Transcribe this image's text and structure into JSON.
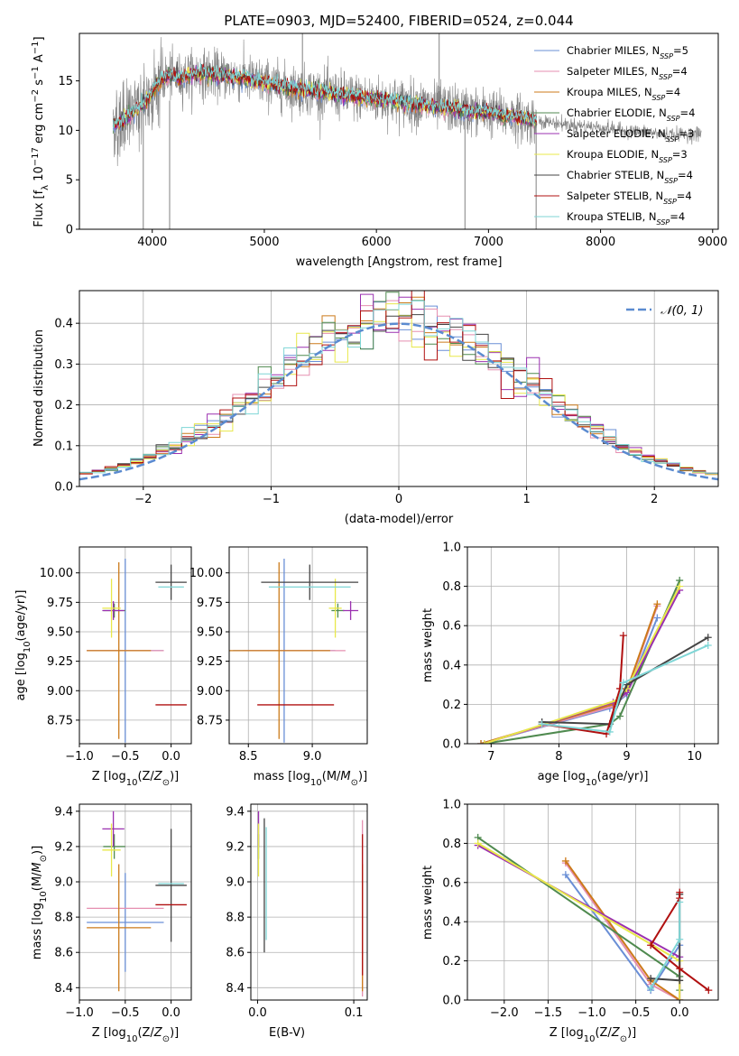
{
  "page_title": "PLATE=0903, MJD=52400, FIBERID=0524, z=0.044",
  "colors": {
    "Chabrier MILES": "#6a8fd6",
    "Salpeter MILES": "#e58fb0",
    "Kroupa MILES": "#cc7a1a",
    "Chabrier ELODIE": "#4f8a4f",
    "Salpeter ELODIE": "#9b30b0",
    "Kroupa ELODIE": "#e8e84a",
    "Chabrier STELIB": "#444444",
    "Salpeter STELIB": "#b01010",
    "Kroupa STELIB": "#7fd6d6",
    "data": "#808080",
    "gauss": "#5b8bd0"
  },
  "chart_data": [
    {
      "id": "spectrum",
      "type": "line",
      "title": "PLATE=0903, MJD=52400, FIBERID=0524, z=0.044",
      "xlabel": "wavelength [Angstrom, rest frame]",
      "ylabel": "Flux [f_λ 10^-17 erg cm^-2 s^-1 A^-1]",
      "xlim": [
        3350,
        9050
      ],
      "ylim": [
        0,
        19.8
      ],
      "xticks": [
        "4000",
        "5000",
        "6000",
        "7000",
        "8000",
        "9000"
      ],
      "yticks": [
        "0",
        "5",
        "10",
        "15"
      ],
      "grid": false,
      "legend_position": "top-right",
      "legend": [
        {
          "name": "Chabrier MILES",
          "n": "5"
        },
        {
          "name": "Salpeter MILES",
          "n": "4"
        },
        {
          "name": "Kroupa MILES",
          "n": "4"
        },
        {
          "name": "Chabrier ELODIE",
          "n": "4"
        },
        {
          "name": "Salpeter ELODIE",
          "n": "3"
        },
        {
          "name": "Kroupa ELODIE",
          "n": "3"
        },
        {
          "name": "Chabrier STELIB",
          "n": "4"
        },
        {
          "name": "Salpeter STELIB",
          "n": "4"
        },
        {
          "name": "Kroupa STELIB",
          "n": "4"
        }
      ],
      "continuum": {
        "x": [
          3650,
          3750,
          3850,
          3950,
          4050,
          4150,
          4250,
          4400,
          4600,
          4800,
          5000,
          5200,
          5400,
          5600,
          5800,
          6000,
          6200,
          6400,
          6600,
          6800,
          7000,
          7200,
          7400,
          7500
        ],
        "y": [
          10.5,
          11.0,
          12.0,
          13.0,
          14.8,
          15.5,
          15.3,
          15.8,
          15.6,
          15.3,
          14.8,
          14.3,
          14.0,
          13.7,
          13.4,
          13.1,
          12.9,
          12.6,
          12.3,
          12.0,
          11.8,
          11.4,
          11.0,
          10.8
        ]
      },
      "red_tail": {
        "x": [
          7450,
          7600,
          7800,
          8000,
          8200,
          8400,
          8600,
          8800,
          8900
        ],
        "y": [
          11.0,
          10.7,
          10.5,
          10.3,
          10.0,
          9.8,
          9.6,
          9.6,
          9.7
        ]
      },
      "spikes": [
        {
          "x": 3920,
          "y0": 12.0,
          "y1": 0
        },
        {
          "x": 4155,
          "y0": 13.0,
          "y1": 0
        },
        {
          "x": 5340,
          "y0": 14.0,
          "y1": 19.8
        },
        {
          "x": 6560,
          "y0": 12.6,
          "y1": 19.8
        },
        {
          "x": 6790,
          "y0": 12.0,
          "y1": 0
        },
        {
          "x": 7425,
          "y0": 10.8,
          "y1": 0
        }
      ]
    },
    {
      "id": "residuals",
      "type": "line",
      "xlabel": "(data-model)/error",
      "ylabel": "Normed distribution",
      "xlim": [
        -2.5,
        2.5
      ],
      "ylim": [
        0,
        0.48
      ],
      "xticks": [
        -2,
        -1,
        0,
        1,
        2
      ],
      "yticks": [
        0.0,
        0.1,
        0.2,
        0.3,
        0.4
      ],
      "grid": true,
      "legend_position": "top-right",
      "legend_label": "𝒩(0, 1)",
      "histogram_bin_width": 0.1,
      "curve": "standard normal pdf"
    },
    {
      "id": "age-vs-Z",
      "type": "scatter",
      "xlabel": "Z [log10(Z/Z⊙)]",
      "ylabel": "age  [log10(age/yr)]",
      "xlim": [
        -1.0,
        0.22
      ],
      "ylim": [
        8.55,
        10.22
      ],
      "xticks": [
        -1.0,
        -0.5,
        0.0
      ],
      "yticks": [
        8.75,
        9.0,
        9.25,
        9.5,
        9.75,
        10.0
      ],
      "grid": true,
      "points": [
        {
          "s": "Chabrier MILES",
          "x": -0.5,
          "y": 9.34,
          "xerr": 0.42,
          "yerr": 0.78
        },
        {
          "s": "Salpeter MILES",
          "x": -0.5,
          "y": 9.34,
          "xerr": 0.42,
          "yerr": 0.0
        },
        {
          "s": "Kroupa MILES",
          "x": -0.57,
          "y": 9.34,
          "xerr": 0.35,
          "yerr": 0.75
        },
        {
          "s": "Chabrier ELODIE",
          "x": -0.62,
          "y": 9.68,
          "xerr": 0.12,
          "yerr": 0.06
        },
        {
          "s": "Salpeter ELODIE",
          "x": -0.63,
          "y": 9.68,
          "xerr": 0.12,
          "yerr": 0.08
        },
        {
          "s": "Kroupa ELODIE",
          "x": -0.65,
          "y": 9.7,
          "xerr": 0.1,
          "yerr": 0.25
        },
        {
          "s": "Chabrier STELIB",
          "x": 0.0,
          "y": 9.92,
          "xerr": 0.17,
          "yerr": 0.15
        },
        {
          "s": "Salpeter STELIB",
          "x": 0.0,
          "y": 8.88,
          "xerr": 0.17,
          "yerr": 0.0
        },
        {
          "s": "Kroupa STELIB",
          "x": 0.0,
          "y": 9.88,
          "xerr": 0.14,
          "yerr": 0.0
        }
      ]
    },
    {
      "id": "age-vs-mass",
      "type": "scatter",
      "xlabel": "mass [log10(M/M⊙)]",
      "ylabel": "",
      "xlim": [
        8.35,
        9.43
      ],
      "ylim": [
        8.55,
        10.22
      ],
      "xticks": [
        8.5,
        9.0
      ],
      "yticks": [
        8.75,
        9.0,
        9.25,
        9.5,
        9.75,
        10.0
      ],
      "grid": true,
      "points": [
        {
          "s": "Chabrier MILES",
          "x": 8.78,
          "y": 9.34,
          "xerr": 0.4,
          "yerr": 0.78
        },
        {
          "s": "Salpeter MILES",
          "x": 8.86,
          "y": 9.34,
          "xerr": 0.4,
          "yerr": 0.0
        },
        {
          "s": "Kroupa MILES",
          "x": 8.74,
          "y": 9.34,
          "xerr": 0.4,
          "yerr": 0.75
        },
        {
          "s": "Chabrier ELODIE",
          "x": 9.2,
          "y": 9.68,
          "xerr": 0.05,
          "yerr": 0.06
        },
        {
          "s": "Salpeter ELODIE",
          "x": 9.3,
          "y": 9.68,
          "xerr": 0.06,
          "yerr": 0.08
        },
        {
          "s": "Kroupa ELODIE",
          "x": 9.18,
          "y": 9.7,
          "xerr": 0.05,
          "yerr": 0.25
        },
        {
          "s": "Chabrier STELIB",
          "x": 8.98,
          "y": 9.92,
          "xerr": 0.38,
          "yerr": 0.15
        },
        {
          "s": "Salpeter STELIB",
          "x": 8.87,
          "y": 8.88,
          "xerr": 0.3,
          "yerr": 0.0
        },
        {
          "s": "Kroupa STELIB",
          "x": 8.98,
          "y": 9.88,
          "xerr": 0.32,
          "yerr": 0.0
        }
      ]
    },
    {
      "id": "mass-weight-vs-age",
      "type": "line",
      "xlabel": "age  [log10(age/yr)]",
      "ylabel": "mass weight",
      "xlim": [
        6.65,
        10.35
      ],
      "ylim": [
        0.0,
        1.0
      ],
      "xticks": [
        7,
        8,
        9,
        10
      ],
      "yticks": [
        0.0,
        0.2,
        0.4,
        0.6,
        0.8,
        1.0
      ],
      "grid": true,
      "series": [
        {
          "s": "Chabrier MILES",
          "x": [
            6.85,
            8.75,
            9.0,
            9.45
          ],
          "y": [
            0.0,
            0.18,
            0.25,
            0.64
          ]
        },
        {
          "s": "Salpeter MILES",
          "x": [
            6.85,
            8.8,
            9.0,
            9.45
          ],
          "y": [
            0.0,
            0.19,
            0.26,
            0.7
          ]
        },
        {
          "s": "Kroupa MILES",
          "x": [
            6.85,
            8.8,
            9.0,
            9.45
          ],
          "y": [
            0.0,
            0.2,
            0.27,
            0.71
          ]
        },
        {
          "s": "Chabrier ELODIE",
          "x": [
            6.9,
            8.75,
            8.9,
            9.78
          ],
          "y": [
            0.0,
            0.1,
            0.14,
            0.83
          ]
        },
        {
          "s": "Salpeter ELODIE",
          "x": [
            6.9,
            8.8,
            9.0,
            9.78
          ],
          "y": [
            0.0,
            0.21,
            0.26,
            0.78
          ]
        },
        {
          "s": "Kroupa ELODIE",
          "x": [
            6.9,
            8.85,
            9.0,
            9.78
          ],
          "y": [
            0.0,
            0.22,
            0.28,
            0.8
          ]
        },
        {
          "s": "Chabrier STELIB",
          "x": [
            7.75,
            8.75,
            9.0,
            10.2
          ],
          "y": [
            0.11,
            0.1,
            0.3,
            0.54
          ]
        },
        {
          "s": "Salpeter STELIB",
          "x": [
            7.75,
            8.7,
            8.9,
            8.95
          ],
          "y": [
            0.1,
            0.05,
            0.28,
            0.55
          ]
        },
        {
          "s": "Kroupa STELIB",
          "x": [
            7.75,
            8.75,
            8.95,
            10.2
          ],
          "y": [
            0.1,
            0.06,
            0.31,
            0.5
          ]
        }
      ]
    },
    {
      "id": "mass-vs-Z",
      "type": "scatter",
      "xlabel": "Z [log10(Z/Z⊙)]",
      "ylabel": "mass [log10(M/M⊙)]",
      "xlim": [
        -1.0,
        0.22
      ],
      "ylim": [
        8.33,
        9.44
      ],
      "xticks": [
        -1.0,
        -0.5,
        0.0
      ],
      "yticks": [
        8.4,
        8.6,
        8.8,
        9.0,
        9.2,
        9.4
      ],
      "grid": true,
      "points": [
        {
          "s": "Chabrier MILES",
          "x": -0.5,
          "y": 8.77,
          "xerr": 0.42,
          "yerr": 0.28
        },
        {
          "s": "Salpeter MILES",
          "x": -0.5,
          "y": 8.85,
          "xerr": 0.42,
          "yerr": 0.0
        },
        {
          "s": "Kroupa MILES",
          "x": -0.57,
          "y": 8.74,
          "xerr": 0.35,
          "yerr": 0.36
        },
        {
          "s": "Chabrier ELODIE",
          "x": -0.62,
          "y": 9.2,
          "xerr": 0.12,
          "yerr": 0.07
        },
        {
          "s": "Salpeter ELODIE",
          "x": -0.63,
          "y": 9.3,
          "xerr": 0.12,
          "yerr": 0.1
        },
        {
          "s": "Kroupa ELODIE",
          "x": -0.65,
          "y": 9.18,
          "xerr": 0.1,
          "yerr": 0.15
        },
        {
          "s": "Chabrier STELIB",
          "x": 0.0,
          "y": 8.98,
          "xerr": 0.17,
          "yerr": 0.32
        },
        {
          "s": "Salpeter STELIB",
          "x": 0.0,
          "y": 8.87,
          "xerr": 0.17,
          "yerr": 0.0
        },
        {
          "s": "Kroupa STELIB",
          "x": 0.0,
          "y": 8.99,
          "xerr": 0.14,
          "yerr": 0.0
        }
      ]
    },
    {
      "id": "mass-vs-EBV",
      "type": "scatter",
      "xlabel": "E(B-V)",
      "ylabel": "",
      "xlim": [
        -0.007,
        0.114
      ],
      "ylim": [
        8.33,
        9.44
      ],
      "xticks": [
        0.0,
        0.1
      ],
      "yticks": [
        8.4,
        8.6,
        8.8,
        9.0,
        9.2,
        9.4
      ],
      "grid": true,
      "points": [
        {
          "s": "Chabrier MILES",
          "x": 0.109,
          "y": 8.77,
          "yerr": 0.28
        },
        {
          "s": "Salpeter MILES",
          "x": 0.109,
          "y": 8.85,
          "yerr": 0.5
        },
        {
          "s": "Kroupa MILES",
          "x": 0.109,
          "y": 8.74,
          "yerr": 0.36
        },
        {
          "s": "Chabrier ELODIE",
          "x": 0.001,
          "y": 9.2,
          "yerr": 0.07
        },
        {
          "s": "Salpeter ELODIE",
          "x": 0.001,
          "y": 9.3,
          "yerr": 0.1
        },
        {
          "s": "Kroupa ELODIE",
          "x": 0.001,
          "y": 9.18,
          "yerr": 0.15
        },
        {
          "s": "Chabrier STELIB",
          "x": 0.007,
          "y": 8.98,
          "yerr": 0.38
        },
        {
          "s": "Salpeter STELIB",
          "x": 0.109,
          "y": 8.87,
          "yerr": 0.4
        },
        {
          "s": "Kroupa STELIB",
          "x": 0.009,
          "y": 8.99,
          "yerr": 0.32
        }
      ]
    },
    {
      "id": "mass-weight-vs-Z",
      "type": "line",
      "xlabel": "Z [log10(Z/Z⊙)]",
      "ylabel": "mass weight",
      "xlim": [
        -2.42,
        0.44
      ],
      "ylim": [
        0.0,
        1.0
      ],
      "xticks": [
        -2.0,
        -1.5,
        -1.0,
        -0.5,
        0.0
      ],
      "yticks": [
        0.0,
        0.2,
        0.4,
        0.6,
        0.8,
        1.0
      ],
      "grid": true,
      "series": [
        {
          "s": "Chabrier MILES",
          "x": [
            -1.3,
            -0.33,
            0.0
          ],
          "y": [
            0.64,
            0.05,
            0.28
          ]
        },
        {
          "s": "Salpeter MILES",
          "x": [
            -1.3,
            -0.33,
            0.0
          ],
          "y": [
            0.7,
            0.08,
            0.0
          ]
        },
        {
          "s": "Kroupa MILES",
          "x": [
            -1.3,
            -0.33,
            0.0
          ],
          "y": [
            0.71,
            0.1,
            0.0
          ]
        },
        {
          "s": "Chabrier ELODIE",
          "x": [
            -2.3,
            0.0,
            0.0
          ],
          "y": [
            0.83,
            0.12,
            0.05
          ]
        },
        {
          "s": "Salpeter ELODIE",
          "x": [
            -2.3,
            0.0,
            0.0
          ],
          "y": [
            0.79,
            0.22,
            0.0
          ]
        },
        {
          "s": "Kroupa ELODIE",
          "x": [
            -2.3,
            0.0,
            0.0
          ],
          "y": [
            0.8,
            0.2,
            0.0
          ]
        },
        {
          "s": "Chabrier STELIB",
          "x": [
            0.0,
            0.0,
            -0.33
          ],
          "y": [
            0.54,
            0.1,
            0.11
          ]
        },
        {
          "s": "Salpeter STELIB",
          "x": [
            0.0,
            0.0,
            -0.33,
            0.0,
            0.33
          ],
          "y": [
            0.55,
            0.52,
            0.28,
            0.16,
            0.05
          ]
        },
        {
          "s": "Kroupa STELIB",
          "x": [
            0.0,
            0.0,
            -0.33
          ],
          "y": [
            0.5,
            0.31,
            0.06
          ]
        }
      ]
    }
  ]
}
